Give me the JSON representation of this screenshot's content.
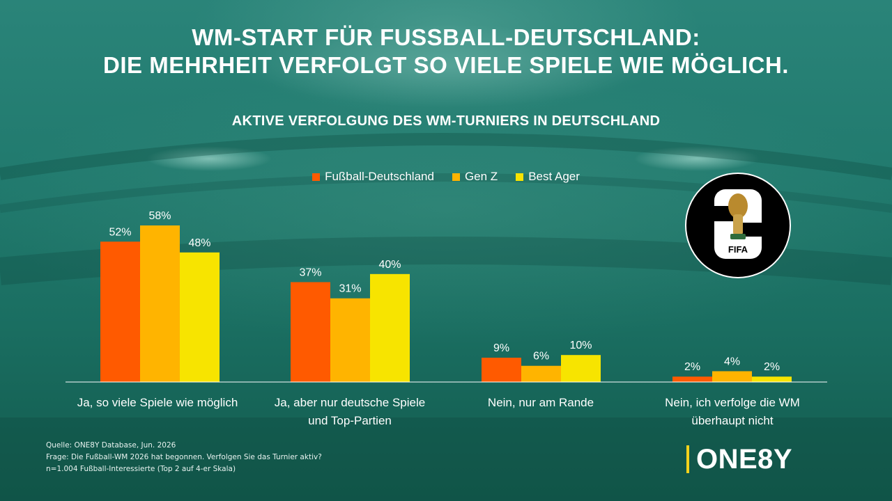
{
  "header": {
    "title_line1": "WM-START FÜR FUSSBALL-DEUTSCHLAND:",
    "title_line2": "DIE MEHRHEIT VERFOLGT SO VIELE SPIELE WIE MÖGLICH.",
    "subtitle": "AKTIVE VERFOLGUNG DES WM-TURNIERS IN DEUTSCHLAND"
  },
  "chart_data": {
    "type": "bar",
    "title": "AKTIVE VERFOLGUNG DES WM-TURNIERS IN DEUTSCHLAND",
    "categories": [
      "Ja, so viele Spiele wie möglich",
      "Ja, aber nur deutsche Spiele und Top-Partien",
      "Nein, nur am Rande",
      "Nein, ich verfolge die WM überhaupt nicht"
    ],
    "series": [
      {
        "name": "Fußball-Deutschland",
        "color": "#ff5a00",
        "values": [
          52,
          37,
          9,
          2
        ]
      },
      {
        "name": "Gen Z",
        "color": "#ffb400",
        "values": [
          58,
          31,
          6,
          4
        ]
      },
      {
        "name": "Best Ager",
        "color": "#f7e400",
        "values": [
          48,
          40,
          10,
          2
        ]
      }
    ],
    "value_suffix": "%",
    "ylim": [
      0,
      60
    ],
    "grid": false,
    "legend_position": "top-center"
  },
  "category_labels": [
    {
      "line1": "Ja, so viele Spiele wie möglich",
      "line2": ""
    },
    {
      "line1": "Ja, aber nur deutsche Spiele",
      "line2": "und Top-Partien"
    },
    {
      "line1": "Nein, nur am Rande",
      "line2": ""
    },
    {
      "line1": "Nein, ich verfolge die WM",
      "line2": "überhaupt nicht"
    }
  ],
  "logo": {
    "number": "26",
    "text": "FIFA"
  },
  "footnote": {
    "line1": "Quelle: ONE8Y Database, Jun. 2026",
    "line2": "Frage: Die Fußball-WM 2026 hat begonnen. Verfolgen Sie das Turnier aktiv?",
    "line3": "n=1.004 Fußball-Interessierte (Top 2 auf 4-er Skala)"
  },
  "brand": {
    "name": "ONE8Y",
    "accent": "#f5d21c"
  }
}
